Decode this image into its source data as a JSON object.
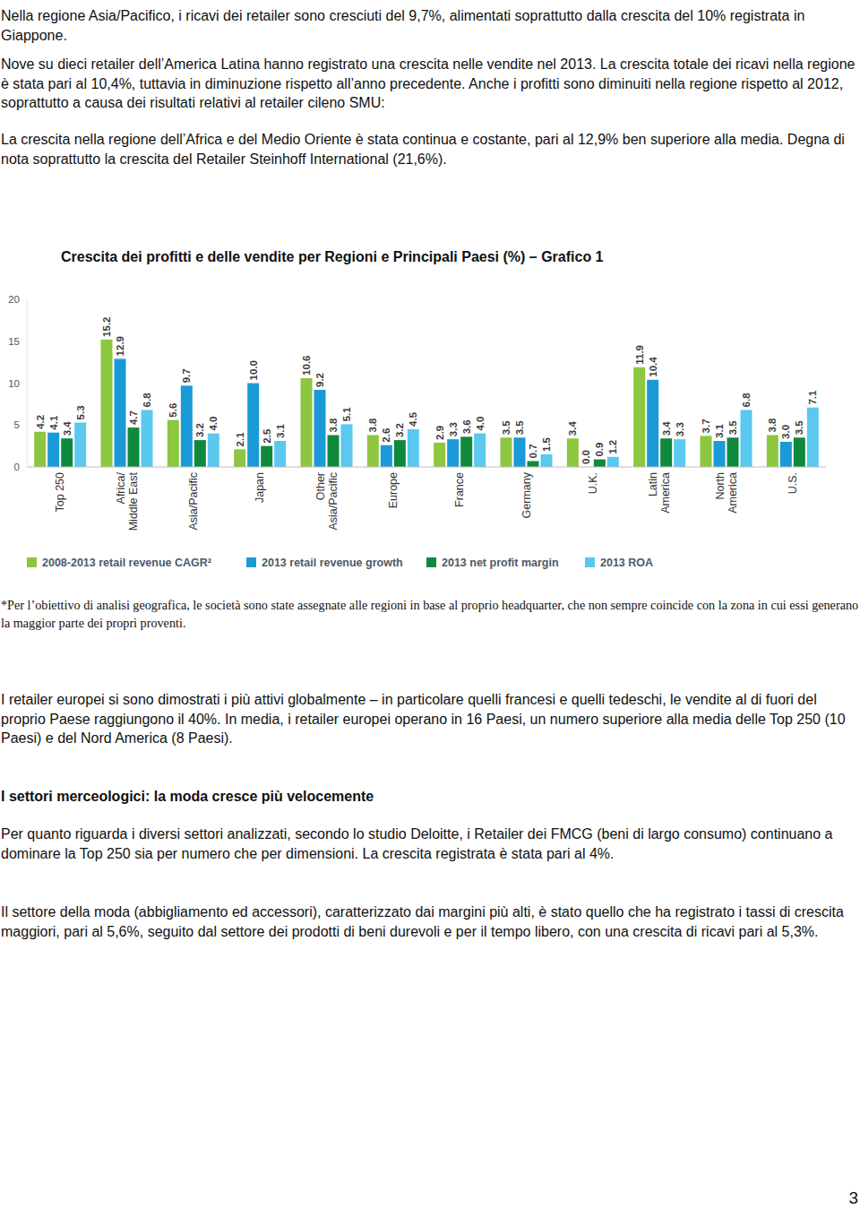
{
  "document": {
    "intro": [
      "Nella regione Asia/Pacifico, i ricavi dei retailer sono cresciuti del 9,7%, alimentati soprattutto dalla crescita del 10% registrata in Giappone.",
      "Nove su dieci retailer dell’America Latina hanno registrato una crescita nelle vendite nel 2013. La crescita totale dei ricavi nella regione è stata pari al 10,4%, tuttavia in diminuzione rispetto all’anno precedente. Anche i profitti sono diminuiti nella regione rispetto al 2012, soprattutto a causa dei risultati relativi al retailer cileno SMU:",
      "La crescita nella regione dell’Africa e del Medio Oriente è stata continua e costante, pari al 12,9% ben superiore alla media. Degna di nota soprattutto la crescita del Retailer Steinhoff International (21,6%)."
    ],
    "footnote": "*Per l’obiettivo di analisi geografica, le società sono state assegnate alle regioni in base al proprio headquarter, che non sempre coincide con la zona in cui essi generano la maggior parte dei propri proventi.",
    "body": [
      "I retailer europei si sono dimostrati i più attivi globalmente – in particolare quelli francesi e quelli tedeschi, le vendite al di fuori del proprio Paese raggiungono il 40%. In media, i retailer europei operano in 16 Paesi, un numero superiore alla media delle Top 250 (10 Paesi) e del Nord America (8 Paesi)."
    ],
    "section_heading": "I settori merceologici: la moda cresce più velocemente",
    "section": [
      "Per quanto riguarda i diversi settori analizzati, secondo lo studio Deloitte, i Retailer dei FMCG (beni di largo consumo) continuano a dominare la Top 250 sia per numero che per dimensioni. La crescita registrata è stata pari al 4%.",
      "Il settore della moda (abbigliamento ed accessori), caratterizzato dai margini più alti, è stato quello che ha registrato i tassi di crescita maggiori, pari al 5,6%, seguito dal settore dei prodotti di beni durevoli e per il tempo libero, con una crescita di ricavi pari al 5,3%."
    ],
    "page_number": "3"
  },
  "chart_data": {
    "type": "bar",
    "title": "Crescita dei profitti e delle vendite per Regioni e Principali Paesi (%) – Grafico 1",
    "categories": [
      "Top 250",
      "Africa/ Middle East",
      "Asia/Pacific",
      "Japan",
      "Other Asia/Pacific",
      "Europe",
      "France",
      "Germany",
      "U.K.",
      "Latin America",
      "North America",
      "U.S."
    ],
    "series": [
      {
        "name": "2008-2013 retail revenue CAGR²",
        "color": "#8dc63f",
        "values": [
          4.2,
          15.2,
          5.6,
          2.1,
          10.6,
          3.8,
          2.9,
          3.5,
          3.4,
          11.9,
          3.7,
          3.8
        ],
        "value_labels": [
          "4.2",
          "15.2",
          "5.6",
          "2.1",
          "10.6",
          "3.8",
          "2.9",
          "3.5",
          "3.4",
          "11.9",
          "3.7",
          "3.8"
        ]
      },
      {
        "name": "2013 retail revenue growth",
        "color": "#1a9ad6",
        "values": [
          4.1,
          12.9,
          9.7,
          10.0,
          9.2,
          2.6,
          3.3,
          3.5,
          0.0,
          10.4,
          3.1,
          3.0
        ],
        "value_labels": [
          "4.1",
          "12.9",
          "9.7",
          "10.0",
          "9.2",
          "2.6",
          "3.3",
          "3.5",
          "0.0",
          "10.4",
          "3.1",
          "3.0"
        ]
      },
      {
        "name": "2013 net profit margin",
        "color": "#0f8a3c",
        "values": [
          3.4,
          4.7,
          3.2,
          2.5,
          3.8,
          3.2,
          3.6,
          0.7,
          0.9,
          3.4,
          3.5,
          3.5
        ],
        "value_labels": [
          "3.4",
          "4.7",
          "3.2",
          "2.5",
          "3.8",
          "3.2",
          "3.6",
          "0.7",
          "0.9",
          "3.4",
          "3.5",
          "3.5"
        ]
      },
      {
        "name": "2013 ROA",
        "color": "#5bc8ef",
        "values": [
          5.3,
          6.8,
          4.0,
          3.1,
          5.1,
          4.5,
          4.0,
          1.5,
          1.2,
          3.3,
          6.8,
          7.1
        ],
        "value_labels": [
          "5.3",
          "6.8",
          "4.0",
          "3.1",
          "5.1",
          "4.5",
          "4.0",
          "1.5",
          "1.2",
          "3.3",
          "6.8",
          "7.1"
        ]
      }
    ],
    "ylim": [
      0,
      20
    ],
    "yticks": [
      0,
      5,
      10,
      15,
      20
    ],
    "grid": false,
    "legend": "bottom",
    "data_labels": true
  }
}
